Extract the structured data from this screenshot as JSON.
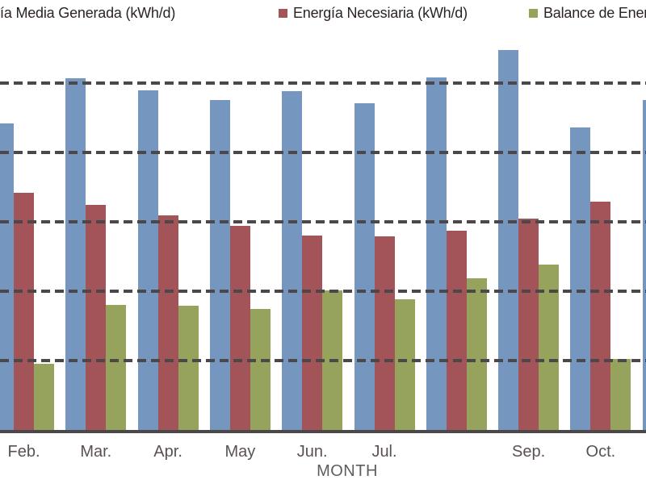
{
  "chart_data": {
    "type": "bar",
    "title": "",
    "xlabel": "MONTH",
    "ylabel": "",
    "ylim": [
      0,
      5.8
    ],
    "gridlines_at": [
      1,
      2,
      3,
      4,
      5
    ],
    "grid_style": "dashed",
    "y_tick_labels_visible": false,
    "legend_position": "top",
    "tick_labels": [
      "Feb.",
      "Mar.",
      "Apr.",
      "May",
      "Jun.",
      "Jul.",
      "",
      "Sep.",
      "Oct.",
      ""
    ],
    "series": [
      {
        "name": "Energía Media Generada (kWh/d)",
        "color": "#7496bf",
        "values": [
          4.42,
          5.07,
          4.9,
          4.76,
          4.88,
          4.71,
          5.08,
          5.48,
          4.36,
          4.76
        ]
      },
      {
        "name": "Energía Necesiaria (kWh/d)",
        "color": "#a25458",
        "values": [
          3.42,
          3.24,
          3.09,
          2.94,
          2.8,
          2.79,
          2.87,
          3.05,
          3.29,
          null
        ]
      },
      {
        "name": "Balance de Energía (kWh/d)",
        "color": "#95a35c",
        "values": [
          0.95,
          1.8,
          1.79,
          1.74,
          2.01,
          1.88,
          2.19,
          2.38,
          1.02,
          null
        ]
      }
    ]
  },
  "colors": {
    "gridline": "#4c4749",
    "axis_line": "#4c4749",
    "legend_text": "#2b2328",
    "tick_text": "#5a5156",
    "axis_title_text": "#5e5e5e"
  }
}
